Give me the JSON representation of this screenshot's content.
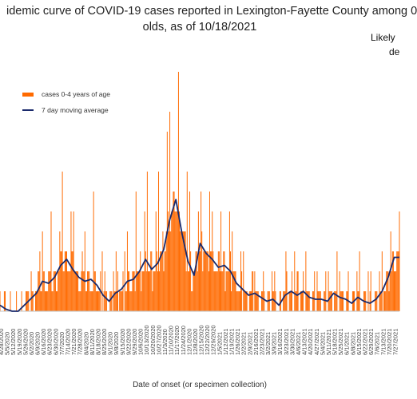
{
  "chart_data": {
    "type": "bar",
    "title_line1": "idemic curve of COVID-19 cases reported in Lexington-Fayette County among 0",
    "title_line2": "olds, as of 10/18/2021",
    "annotation_line1": "Likely",
    "annotation_line2": "de",
    "xlabel": "Date of onset (or specimen collection)",
    "ylabel": "",
    "legend": [
      {
        "name": "cases 0-4 years of age",
        "color": "#ff6a00",
        "kind": "bar"
      },
      {
        "name": "7 day moving average",
        "color": "#1a2a6c",
        "kind": "line"
      }
    ],
    "legend_position": "top-left",
    "grid": false,
    "ylim": [
      0,
      10
    ],
    "x_tick_labels": [
      "4/28/2020",
      "5/5/2020",
      "5/12/2020",
      "5/19/2020",
      "5/26/2020",
      "6/2/2020",
      "6/9/2020",
      "6/16/2020",
      "6/23/2020",
      "6/30/2020",
      "7/7/2020",
      "7/14/2020",
      "7/21/2020",
      "7/28/2020",
      "8/4/2020",
      "8/11/2020",
      "8/18/2020",
      "8/25/2020",
      "9/1/2020",
      "9/8/2020",
      "9/15/2020",
      "9/22/2020",
      "9/29/2020",
      "10/6/2020",
      "10/13/2020",
      "10/20/2020",
      "10/27/2020",
      "11/3/2020",
      "11/10/2020",
      "11/17/2020",
      "11/24/2020",
      "12/1/2020",
      "12/8/2020",
      "12/15/2020",
      "12/22/2020",
      "12/29/2020",
      "1/5/2021",
      "1/12/2021",
      "1/19/2021",
      "1/26/2021",
      "2/2/2021",
      "2/9/2021",
      "2/16/2021",
      "2/23/2021",
      "3/2/2021",
      "3/9/2021",
      "3/16/2021",
      "3/23/2021",
      "3/30/2021",
      "4/6/2021",
      "4/13/2021",
      "4/20/2021",
      "4/27/2021",
      "5/4/2021",
      "5/11/2021",
      "5/18/2021",
      "5/25/2021",
      "6/1/2021",
      "6/8/2021",
      "6/15/2021",
      "6/22/2021",
      "6/29/2021",
      "7/6/2021",
      "7/13/2021",
      "7/20/2021",
      "7/27/2021"
    ],
    "weekly_moving_average": [
      0.3,
      0.1,
      0.0,
      0.0,
      0.3,
      0.6,
      0.9,
      1.5,
      1.4,
      1.7,
      2.3,
      2.6,
      2.1,
      1.7,
      1.5,
      1.6,
      1.3,
      0.8,
      0.5,
      0.9,
      1.1,
      1.5,
      1.6,
      2.0,
      2.6,
      2.1,
      2.4,
      3.1,
      4.6,
      5.6,
      3.9,
      2.5,
      1.8,
      3.4,
      2.9,
      2.6,
      2.2,
      2.3,
      2.0,
      1.4,
      1.1,
      0.8,
      0.9,
      0.7,
      0.5,
      0.6,
      0.3,
      0.8,
      1.0,
      0.8,
      1.0,
      0.7,
      0.6,
      0.6,
      0.5,
      0.9,
      0.7,
      0.6,
      0.4,
      0.7,
      0.5,
      0.4,
      0.6,
      1.0,
      1.7,
      2.7
    ],
    "daily_peaks": [
      1,
      0,
      0,
      0,
      1,
      2,
      3,
      4,
      5,
      4,
      7,
      5,
      5,
      3,
      4,
      6,
      3,
      2,
      2,
      3,
      3,
      4,
      6,
      5,
      7,
      5,
      7,
      9,
      10,
      12,
      7,
      6,
      5,
      6,
      6,
      5,
      5,
      5,
      4,
      3,
      3,
      2,
      2,
      2,
      2,
      2,
      1,
      3,
      3,
      2,
      3,
      2,
      2,
      2,
      2,
      3,
      2,
      2,
      2,
      3,
      2,
      2,
      2,
      3,
      4,
      5
    ]
  },
  "colors": {
    "bars": "#ff6a00",
    "average_line": "#1a2a6c",
    "axis": "#bfbfbf"
  }
}
